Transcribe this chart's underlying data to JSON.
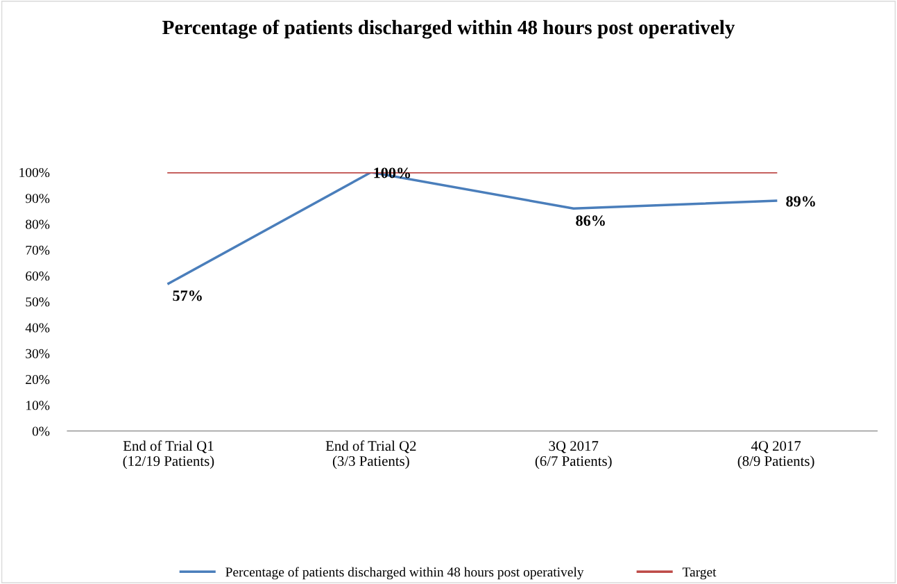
{
  "chart_data": {
    "type": "line",
    "title": "Percentage of patients discharged within 48 hours post operatively",
    "categories": [
      "End of Trial Q1\n(12/19 Patients)",
      "End of Trial Q2\n(3/3 Patients)",
      "3Q 2017\n(6/7 Patients)",
      "4Q 2017\n(8/9 Patients)"
    ],
    "series": [
      {
        "name": "Percentage of patients discharged within 48 hours post operatively",
        "color": "#4a7ebb",
        "values": [
          57,
          100,
          86,
          89
        ],
        "value_labels": [
          "57%",
          "100%",
          "86%",
          "89%"
        ]
      },
      {
        "name": "Target",
        "color": "#be4b48",
        "values": [
          100,
          100,
          100,
          100
        ]
      }
    ],
    "ylim": [
      0,
      100
    ],
    "yticks": [
      {
        "value": 0,
        "label": "0%"
      },
      {
        "value": 10,
        "label": "10%"
      },
      {
        "value": 20,
        "label": "20%"
      },
      {
        "value": 30,
        "label": "30%"
      },
      {
        "value": 40,
        "label": "40%"
      },
      {
        "value": 50,
        "label": "50%"
      },
      {
        "value": 60,
        "label": "60%"
      },
      {
        "value": 70,
        "label": "70%"
      },
      {
        "value": 80,
        "label": "80%"
      },
      {
        "value": 90,
        "label": "90%"
      },
      {
        "value": 100,
        "label": "100%"
      }
    ],
    "grid": false,
    "legend": "bottom",
    "marker": "none",
    "line_style": "solid"
  }
}
